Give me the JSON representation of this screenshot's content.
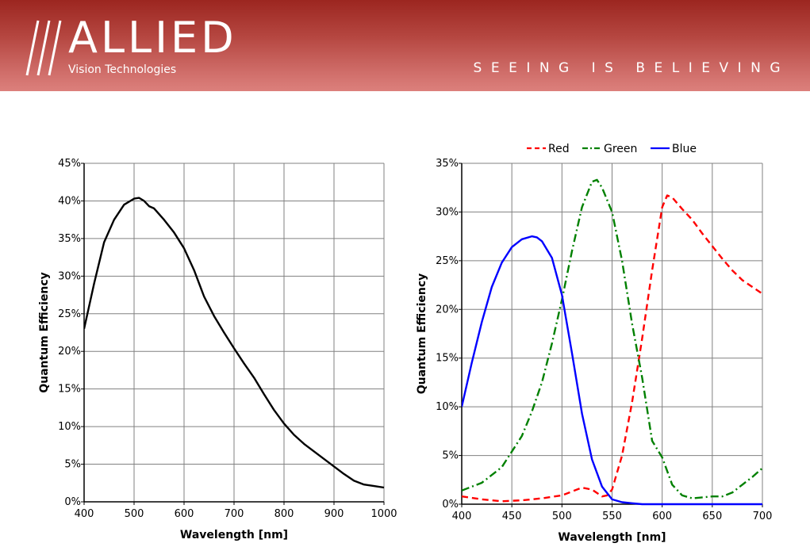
{
  "header": {
    "brand": "ALLIED",
    "brand_sub": "Vision Technologies",
    "tagline": "SEEING IS BELIEVING",
    "colors": {
      "banner_top": "#9c2620",
      "banner_bottom": "#dc807c"
    }
  },
  "chart_data": [
    {
      "type": "line",
      "title": "",
      "xlabel": "Wavelength [nm]",
      "ylabel": "Quantum Efficiency",
      "xlim": [
        400,
        1000
      ],
      "ylim": [
        0,
        45
      ],
      "xticks": [
        400,
        500,
        600,
        700,
        800,
        900,
        1000
      ],
      "yticks": [
        0,
        5,
        10,
        15,
        20,
        25,
        30,
        35,
        40,
        45
      ],
      "ytick_labels": [
        "0%",
        "5%",
        "10%",
        "15%",
        "20%",
        "25%",
        "30%",
        "35%",
        "40%",
        "45%"
      ],
      "grid": true,
      "series": [
        {
          "color": "#000000",
          "dash": "solid",
          "x": [
            400,
            420,
            440,
            460,
            480,
            500,
            510,
            520,
            530,
            540,
            560,
            580,
            600,
            620,
            640,
            660,
            680,
            700,
            720,
            740,
            760,
            780,
            800,
            820,
            840,
            860,
            880,
            900,
            920,
            940,
            960,
            980,
            1000
          ],
          "y": [
            23,
            29,
            34.5,
            37.5,
            39.5,
            40.3,
            40.4,
            40,
            39.3,
            39,
            37.5,
            35.8,
            33.7,
            30.8,
            27.3,
            24.7,
            22.5,
            20.4,
            18.4,
            16.5,
            14.3,
            12.2,
            10.4,
            8.9,
            7.7,
            6.7,
            5.7,
            4.7,
            3.7,
            2.8,
            2.3,
            2.1,
            1.9
          ]
        }
      ]
    },
    {
      "type": "line",
      "title": "",
      "xlabel": "Wavelength [nm]",
      "ylabel": "Quantum Efficiency",
      "xlim": [
        400,
        700
      ],
      "ylim": [
        0,
        35
      ],
      "xticks": [
        400,
        450,
        500,
        550,
        600,
        650,
        700
      ],
      "yticks": [
        0,
        5,
        10,
        15,
        20,
        25,
        30,
        35
      ],
      "ytick_labels": [
        "0%",
        "5%",
        "10%",
        "15%",
        "20%",
        "25%",
        "30%",
        "35%"
      ],
      "grid": true,
      "legend": "top",
      "series": [
        {
          "name": "Red",
          "color": "#ff0000",
          "dash": "dashed",
          "x": [
            400,
            420,
            440,
            460,
            480,
            500,
            520,
            530,
            540,
            545,
            550,
            560,
            570,
            580,
            590,
            600,
            605,
            610,
            620,
            630,
            640,
            650,
            660,
            670,
            680,
            690,
            700
          ],
          "y": [
            0.8,
            0.5,
            0.3,
            0.4,
            0.6,
            0.9,
            1.7,
            1.5,
            0.8,
            0.9,
            1.5,
            5,
            10.5,
            17,
            24,
            30.5,
            31.7,
            31.5,
            30.3,
            29.2,
            27.8,
            26.5,
            25.2,
            24,
            23,
            22.3,
            21.6
          ]
        },
        {
          "name": "Green",
          "color": "#008000",
          "dash": "dashdot",
          "x": [
            400,
            420,
            440,
            460,
            470,
            480,
            490,
            500,
            510,
            520,
            530,
            535,
            540,
            550,
            560,
            570,
            580,
            590,
            600,
            610,
            620,
            630,
            640,
            650,
            660,
            670,
            680,
            690,
            700
          ],
          "y": [
            1.4,
            2.2,
            3.8,
            7,
            9.5,
            12.5,
            16.5,
            21,
            26,
            30.5,
            33.1,
            33.3,
            32.5,
            30,
            25,
            18.5,
            13,
            6.5,
            4.8,
            2,
            0.9,
            0.6,
            0.7,
            0.8,
            0.8,
            1.2,
            2,
            2.8,
            3.7
          ]
        },
        {
          "name": "Blue",
          "color": "#0000ff",
          "dash": "solid",
          "x": [
            400,
            410,
            420,
            430,
            440,
            450,
            460,
            470,
            475,
            480,
            490,
            500,
            510,
            520,
            530,
            540,
            550,
            560,
            570,
            580,
            600,
            650,
            700
          ],
          "y": [
            10,
            14.5,
            18.7,
            22.3,
            24.8,
            26.4,
            27.2,
            27.5,
            27.4,
            27,
            25.3,
            21.5,
            15.5,
            9.3,
            4.6,
            1.8,
            0.5,
            0.2,
            0.1,
            0,
            0,
            0,
            0
          ]
        }
      ]
    }
  ]
}
